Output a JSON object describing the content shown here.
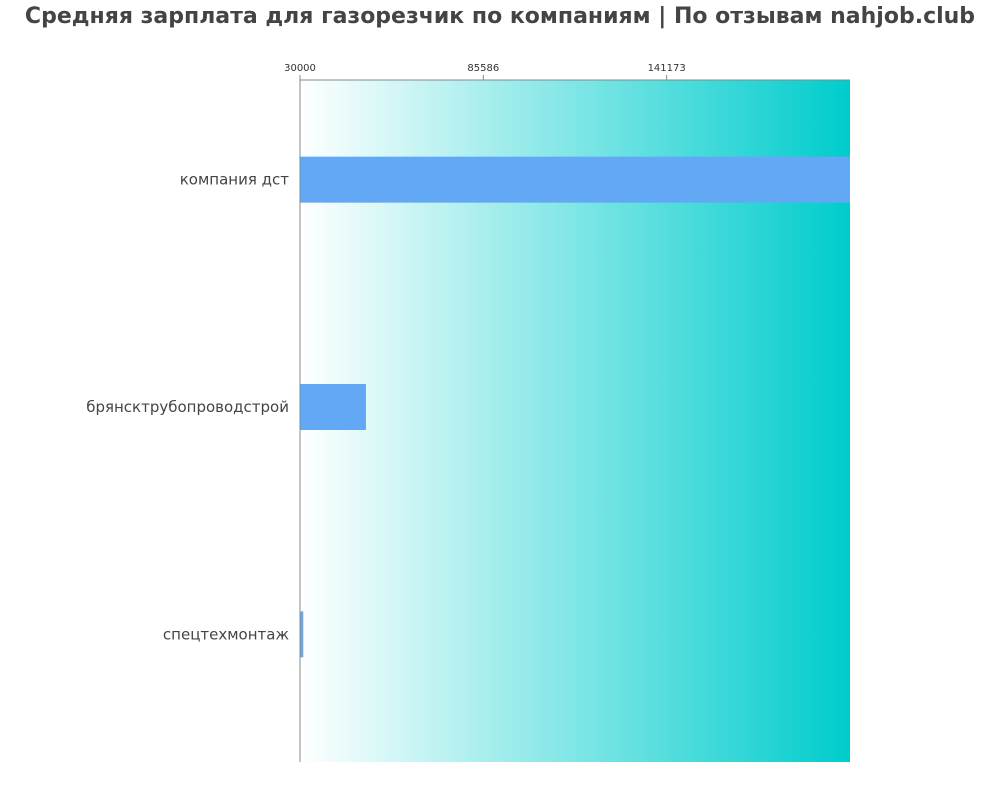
{
  "chart_data": {
    "type": "bar",
    "orientation": "horizontal",
    "title": "Средняя зарплата для газорезчик по компаниям  | По отзывам nahjob.club",
    "xlabel": "",
    "ylabel": "",
    "categories": [
      "компания дст",
      "брянсктрубопроводстрой",
      "спецтехмонтаж"
    ],
    "values": [
      196760,
      50000,
      31000
    ],
    "x_ticks": [
      "30000",
      "85586",
      "141173"
    ],
    "xlim": [
      30000,
      196760
    ],
    "grid": false,
    "legend": "none"
  },
  "colors": {
    "bar": "#63a8f5",
    "bar_small": "#6aa7e8",
    "background_start": "#ffffff",
    "background_end": "#00cccc",
    "title": "#444444",
    "axis": "#888888",
    "label": "#444444"
  }
}
